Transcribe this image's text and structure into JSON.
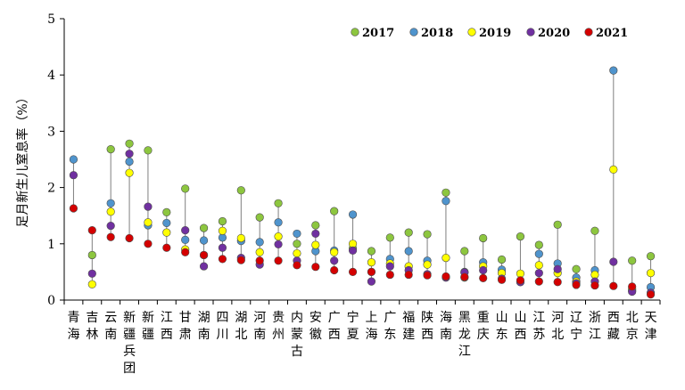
{
  "chart_data": {
    "type": "scatter",
    "ylabel": "足月新生儿窒息率（%）",
    "ylim": [
      0,
      5
    ],
    "yticks": [
      0,
      1,
      2,
      3,
      4,
      5
    ],
    "legend_position": "top-right",
    "categories": [
      "青海",
      "吉林",
      "云南",
      "新疆兵团",
      "新疆",
      "江西",
      "甘肃",
      "湖南",
      "四川",
      "湖北",
      "河南",
      "贵州",
      "内蒙古",
      "安徽",
      "广西",
      "宁夏",
      "上海",
      "广东",
      "福建",
      "陕西",
      "海南",
      "黑龙江",
      "重庆",
      "山东",
      "山西",
      "江苏",
      "河北",
      "辽宁",
      "浙江",
      "西藏",
      "北京",
      "天津"
    ],
    "series": [
      {
        "name": "2017",
        "color": "#8dc63f",
        "values": [
          null,
          0.8,
          2.68,
          2.78,
          2.66,
          1.56,
          1.98,
          1.28,
          1.4,
          1.95,
          1.47,
          1.72,
          1.0,
          1.33,
          1.58,
          0.92,
          0.87,
          1.11,
          1.2,
          1.17,
          1.91,
          0.87,
          1.1,
          0.72,
          1.13,
          0.98,
          1.34,
          0.55,
          1.23,
          null,
          0.7,
          0.78
        ]
      },
      {
        "name": "2018",
        "color": "#4f94cd",
        "values": [
          2.5,
          null,
          1.72,
          2.46,
          1.33,
          1.37,
          1.07,
          1.06,
          1.11,
          1.05,
          1.03,
          1.38,
          1.18,
          0.87,
          0.88,
          1.52,
          0.5,
          0.73,
          0.87,
          0.7,
          1.76,
          0.5,
          0.67,
          0.54,
          0.32,
          0.82,
          0.65,
          0.4,
          0.53,
          4.08,
          0.17,
          0.23
        ]
      },
      {
        "name": "2019",
        "color": "#ffff00",
        "values": [
          null,
          0.28,
          1.57,
          2.26,
          1.38,
          1.2,
          0.9,
          0.8,
          1.23,
          1.1,
          0.85,
          1.13,
          0.83,
          0.98,
          0.85,
          1.0,
          0.67,
          0.65,
          0.6,
          0.63,
          0.75,
          0.4,
          0.6,
          0.48,
          0.47,
          0.62,
          0.48,
          0.33,
          0.45,
          2.32,
          0.2,
          0.48
        ]
      },
      {
        "name": "2020",
        "color": "#7030a0",
        "values": [
          2.22,
          0.47,
          1.32,
          2.6,
          1.66,
          null,
          1.24,
          0.6,
          0.93,
          0.75,
          0.63,
          0.99,
          0.7,
          1.18,
          0.7,
          0.88,
          0.33,
          0.6,
          0.53,
          0.46,
          0.4,
          0.49,
          0.53,
          0.38,
          0.32,
          0.48,
          0.55,
          0.3,
          0.33,
          0.68,
          0.15,
          0.13
        ]
      },
      {
        "name": "2021",
        "color": "#d40000",
        "values": [
          1.63,
          1.24,
          1.12,
          1.1,
          1.0,
          0.93,
          0.85,
          0.8,
          0.73,
          0.71,
          0.7,
          0.7,
          0.62,
          0.59,
          0.53,
          0.5,
          0.5,
          0.45,
          0.45,
          0.44,
          0.42,
          0.41,
          0.39,
          0.36,
          0.35,
          0.33,
          0.32,
          0.27,
          0.26,
          0.25,
          0.24,
          0.1
        ]
      }
    ]
  }
}
